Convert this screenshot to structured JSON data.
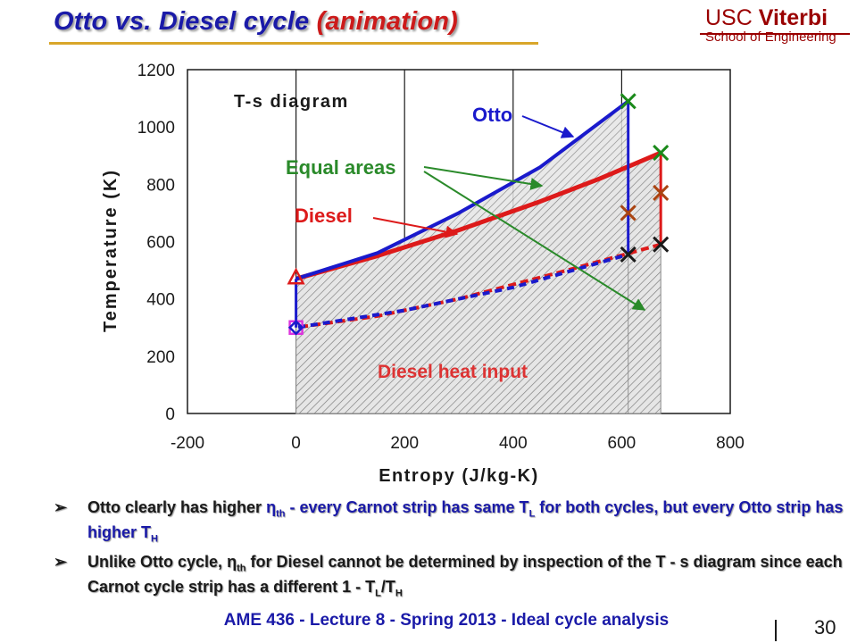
{
  "slide": {
    "title_main": "Otto vs. Diesel cycle",
    "title_highlight": "(animation)",
    "logo_line1_a": "USC ",
    "logo_line1_b": "Viterbi",
    "logo_line2": "School of Engineering",
    "footer": "AME 436 - Lecture 8 - Spring 2013 - Ideal cycle analysis",
    "page_number": "30",
    "bullets": [
      {
        "arrow": "➢",
        "p1": "Otto clearly has higher ",
        "eta": "η",
        "eta_sub": "th",
        "p2": "  - every Carnot strip has same T",
        "p2_sub": "L",
        "p3": " for both cycles, but every Otto strip has higher T",
        "p3_sub": "H"
      },
      {
        "arrow": "➢",
        "p1": "Unlike Otto cycle, ",
        "eta": "η",
        "eta_sub": "th",
        "p2": " for Diesel cannot be determined by inspection of the T - s diagram since each Carnot cycle strip has a different 1 - T",
        "p2_sub": "L",
        "p3": "/T",
        "p3_sub": "H"
      }
    ]
  },
  "chart_data": {
    "type": "line",
    "title": "T-s diagram",
    "xlabel": "Entropy (J/kg-K)",
    "ylabel": "Temperature (K)",
    "xlim": [
      -200,
      800
    ],
    "ylim": [
      0,
      1200
    ],
    "xticks": [
      -200,
      0,
      200,
      400,
      600,
      800
    ],
    "yticks": [
      0,
      200,
      400,
      600,
      800,
      1000,
      1200
    ],
    "grid": "vertical",
    "colors": {
      "otto": "#1a1acc",
      "diesel": "#dd1a1a",
      "annotation": "#2a8a2a"
    },
    "series": [
      {
        "name": "Otto",
        "color": "#1a1acc",
        "points": [
          [
            0,
            300
          ],
          [
            0,
            470
          ],
          [
            150,
            560
          ],
          [
            300,
            700
          ],
          [
            450,
            860
          ],
          [
            612,
            1090
          ],
          [
            612,
            555
          ],
          [
            400,
            440
          ],
          [
            200,
            360
          ],
          [
            0,
            300
          ]
        ]
      },
      {
        "name": "Diesel",
        "color": "#dd1a1a",
        "points": [
          [
            0,
            300
          ],
          [
            0,
            470
          ],
          [
            150,
            550
          ],
          [
            300,
            640
          ],
          [
            450,
            740
          ],
          [
            560,
            820
          ],
          [
            672,
            910
          ],
          [
            672,
            590
          ],
          [
            500,
            500
          ],
          [
            300,
            400
          ],
          [
            150,
            340
          ],
          [
            0,
            300
          ]
        ]
      }
    ],
    "markers": [
      {
        "label": "Otto state 1",
        "shape": "square",
        "color": "#dd33dd",
        "x": 0,
        "y": 300
      },
      {
        "label": "Diesel state 1",
        "shape": "diamond",
        "color": "#1a1acc",
        "x": 0,
        "y": 300
      },
      {
        "label": "state 2",
        "shape": "triangle",
        "color": "#dd1a1a",
        "x": 0,
        "y": 470
      },
      {
        "label": "Otto state 3",
        "shape": "x",
        "color": "#1a8a1a",
        "x": 612,
        "y": 1090
      },
      {
        "label": "Otto state 4",
        "shape": "x",
        "color": "#1a1a1a",
        "x": 612,
        "y": 555
      },
      {
        "label": "Diesel state 3",
        "shape": "x",
        "color": "#1a8a1a",
        "x": 672,
        "y": 910
      },
      {
        "label": "Diesel state 4",
        "shape": "x",
        "color": "#1a1a1a",
        "x": 672,
        "y": 590
      },
      {
        "label": "Otto-Diesel cross 1",
        "shape": "x",
        "color": "#aa4411",
        "x": 612,
        "y": 700
      },
      {
        "label": "Otto-Diesel cross 2",
        "shape": "x",
        "color": "#aa4411",
        "x": 672,
        "y": 770
      }
    ],
    "annotations": [
      {
        "text": "Otto",
        "color": "#1a1acc"
      },
      {
        "text": "Equal areas",
        "color": "#2a8a2a"
      },
      {
        "text": "Diesel",
        "color": "#dd1a1a"
      },
      {
        "text": "Diesel heat input",
        "color": "#dd3333"
      }
    ]
  }
}
